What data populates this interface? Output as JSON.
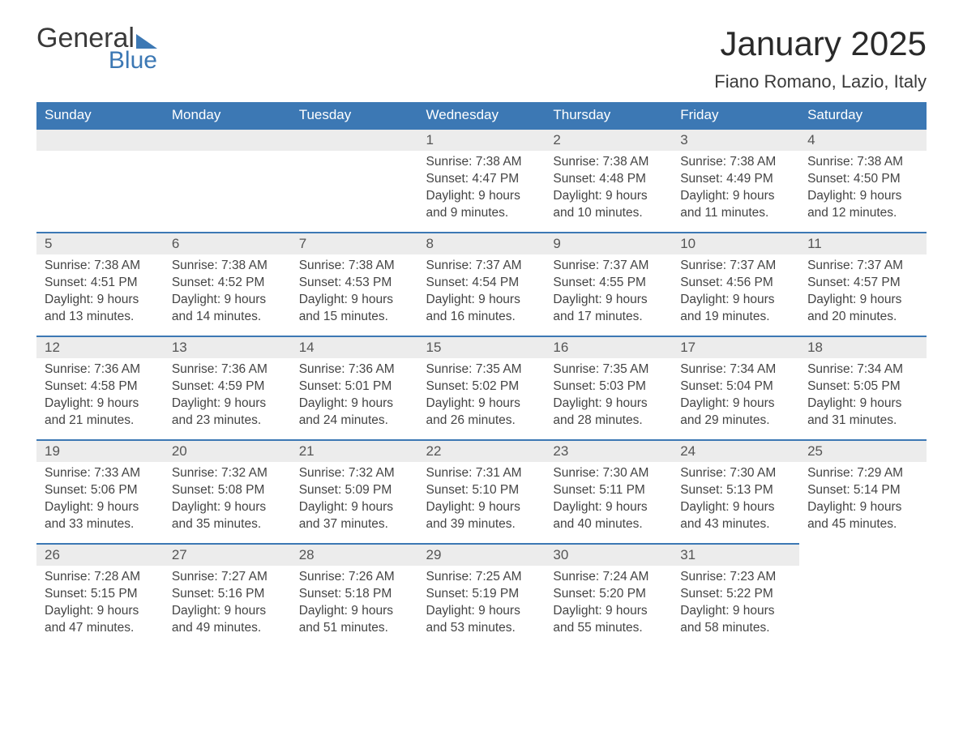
{
  "logo": {
    "line1": "General",
    "line2": "Blue"
  },
  "title": "January 2025",
  "location": "Fiano Romano, Lazio, Italy",
  "colors": {
    "header_bg": "#3c78b4",
    "header_text": "#ffffff",
    "daynum_bg": "#ececec",
    "daynum_border": "#3c78b4",
    "body_text": "#444444",
    "page_bg": "#ffffff"
  },
  "weekdays": [
    "Sunday",
    "Monday",
    "Tuesday",
    "Wednesday",
    "Thursday",
    "Friday",
    "Saturday"
  ],
  "weeks": [
    [
      {
        "empty": true
      },
      {
        "empty": true
      },
      {
        "empty": true
      },
      {
        "num": "1",
        "sunrise": "Sunrise: 7:38 AM",
        "sunset": "Sunset: 4:47 PM",
        "daylight": "Daylight: 9 hours and 9 minutes."
      },
      {
        "num": "2",
        "sunrise": "Sunrise: 7:38 AM",
        "sunset": "Sunset: 4:48 PM",
        "daylight": "Daylight: 9 hours and 10 minutes."
      },
      {
        "num": "3",
        "sunrise": "Sunrise: 7:38 AM",
        "sunset": "Sunset: 4:49 PM",
        "daylight": "Daylight: 9 hours and 11 minutes."
      },
      {
        "num": "4",
        "sunrise": "Sunrise: 7:38 AM",
        "sunset": "Sunset: 4:50 PM",
        "daylight": "Daylight: 9 hours and 12 minutes."
      }
    ],
    [
      {
        "num": "5",
        "sunrise": "Sunrise: 7:38 AM",
        "sunset": "Sunset: 4:51 PM",
        "daylight": "Daylight: 9 hours and 13 minutes."
      },
      {
        "num": "6",
        "sunrise": "Sunrise: 7:38 AM",
        "sunset": "Sunset: 4:52 PM",
        "daylight": "Daylight: 9 hours and 14 minutes."
      },
      {
        "num": "7",
        "sunrise": "Sunrise: 7:38 AM",
        "sunset": "Sunset: 4:53 PM",
        "daylight": "Daylight: 9 hours and 15 minutes."
      },
      {
        "num": "8",
        "sunrise": "Sunrise: 7:37 AM",
        "sunset": "Sunset: 4:54 PM",
        "daylight": "Daylight: 9 hours and 16 minutes."
      },
      {
        "num": "9",
        "sunrise": "Sunrise: 7:37 AM",
        "sunset": "Sunset: 4:55 PM",
        "daylight": "Daylight: 9 hours and 17 minutes."
      },
      {
        "num": "10",
        "sunrise": "Sunrise: 7:37 AM",
        "sunset": "Sunset: 4:56 PM",
        "daylight": "Daylight: 9 hours and 19 minutes."
      },
      {
        "num": "11",
        "sunrise": "Sunrise: 7:37 AM",
        "sunset": "Sunset: 4:57 PM",
        "daylight": "Daylight: 9 hours and 20 minutes."
      }
    ],
    [
      {
        "num": "12",
        "sunrise": "Sunrise: 7:36 AM",
        "sunset": "Sunset: 4:58 PM",
        "daylight": "Daylight: 9 hours and 21 minutes."
      },
      {
        "num": "13",
        "sunrise": "Sunrise: 7:36 AM",
        "sunset": "Sunset: 4:59 PM",
        "daylight": "Daylight: 9 hours and 23 minutes."
      },
      {
        "num": "14",
        "sunrise": "Sunrise: 7:36 AM",
        "sunset": "Sunset: 5:01 PM",
        "daylight": "Daylight: 9 hours and 24 minutes."
      },
      {
        "num": "15",
        "sunrise": "Sunrise: 7:35 AM",
        "sunset": "Sunset: 5:02 PM",
        "daylight": "Daylight: 9 hours and 26 minutes."
      },
      {
        "num": "16",
        "sunrise": "Sunrise: 7:35 AM",
        "sunset": "Sunset: 5:03 PM",
        "daylight": "Daylight: 9 hours and 28 minutes."
      },
      {
        "num": "17",
        "sunrise": "Sunrise: 7:34 AM",
        "sunset": "Sunset: 5:04 PM",
        "daylight": "Daylight: 9 hours and 29 minutes."
      },
      {
        "num": "18",
        "sunrise": "Sunrise: 7:34 AM",
        "sunset": "Sunset: 5:05 PM",
        "daylight": "Daylight: 9 hours and 31 minutes."
      }
    ],
    [
      {
        "num": "19",
        "sunrise": "Sunrise: 7:33 AM",
        "sunset": "Sunset: 5:06 PM",
        "daylight": "Daylight: 9 hours and 33 minutes."
      },
      {
        "num": "20",
        "sunrise": "Sunrise: 7:32 AM",
        "sunset": "Sunset: 5:08 PM",
        "daylight": "Daylight: 9 hours and 35 minutes."
      },
      {
        "num": "21",
        "sunrise": "Sunrise: 7:32 AM",
        "sunset": "Sunset: 5:09 PM",
        "daylight": "Daylight: 9 hours and 37 minutes."
      },
      {
        "num": "22",
        "sunrise": "Sunrise: 7:31 AM",
        "sunset": "Sunset: 5:10 PM",
        "daylight": "Daylight: 9 hours and 39 minutes."
      },
      {
        "num": "23",
        "sunrise": "Sunrise: 7:30 AM",
        "sunset": "Sunset: 5:11 PM",
        "daylight": "Daylight: 9 hours and 40 minutes."
      },
      {
        "num": "24",
        "sunrise": "Sunrise: 7:30 AM",
        "sunset": "Sunset: 5:13 PM",
        "daylight": "Daylight: 9 hours and 43 minutes."
      },
      {
        "num": "25",
        "sunrise": "Sunrise: 7:29 AM",
        "sunset": "Sunset: 5:14 PM",
        "daylight": "Daylight: 9 hours and 45 minutes."
      }
    ],
    [
      {
        "num": "26",
        "sunrise": "Sunrise: 7:28 AM",
        "sunset": "Sunset: 5:15 PM",
        "daylight": "Daylight: 9 hours and 47 minutes."
      },
      {
        "num": "27",
        "sunrise": "Sunrise: 7:27 AM",
        "sunset": "Sunset: 5:16 PM",
        "daylight": "Daylight: 9 hours and 49 minutes."
      },
      {
        "num": "28",
        "sunrise": "Sunrise: 7:26 AM",
        "sunset": "Sunset: 5:18 PM",
        "daylight": "Daylight: 9 hours and 51 minutes."
      },
      {
        "num": "29",
        "sunrise": "Sunrise: 7:25 AM",
        "sunset": "Sunset: 5:19 PM",
        "daylight": "Daylight: 9 hours and 53 minutes."
      },
      {
        "num": "30",
        "sunrise": "Sunrise: 7:24 AM",
        "sunset": "Sunset: 5:20 PM",
        "daylight": "Daylight: 9 hours and 55 minutes."
      },
      {
        "num": "31",
        "sunrise": "Sunrise: 7:23 AM",
        "sunset": "Sunset: 5:22 PM",
        "daylight": "Daylight: 9 hours and 58 minutes."
      },
      {
        "empty": true,
        "no_bar": true
      }
    ]
  ]
}
